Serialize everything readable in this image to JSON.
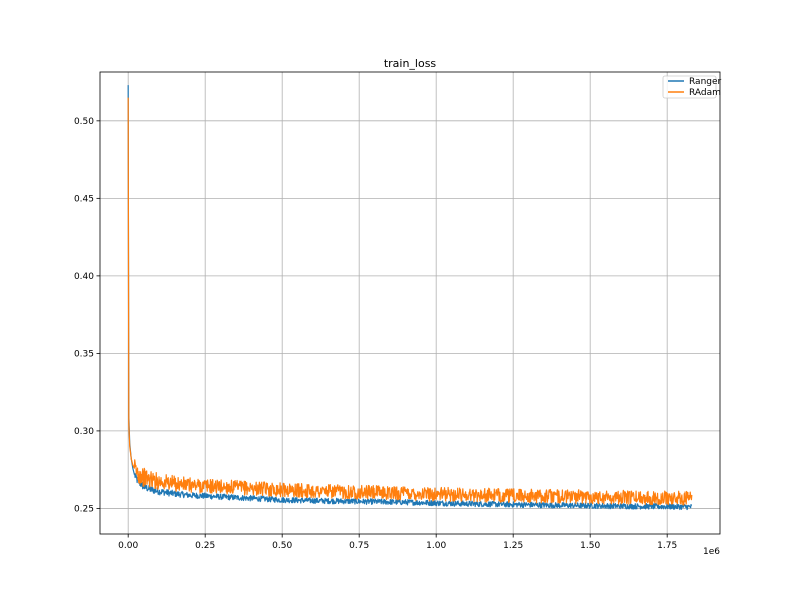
{
  "chart_data": {
    "type": "line",
    "title": "train_loss",
    "xlabel": "",
    "ylabel": "",
    "x_offset_label": "1e6",
    "xlim": [
      -0.0915,
      1.9215
    ],
    "ylim": [
      0.2335,
      0.5315
    ],
    "x_ticks": [
      {
        "value": 0.0,
        "label": "0.00"
      },
      {
        "value": 0.25,
        "label": "0.25"
      },
      {
        "value": 0.5,
        "label": "0.50"
      },
      {
        "value": 0.75,
        "label": "0.75"
      },
      {
        "value": 1.0,
        "label": "1.00"
      },
      {
        "value": 1.25,
        "label": "1.25"
      },
      {
        "value": 1.5,
        "label": "1.50"
      },
      {
        "value": 1.75,
        "label": "1.75"
      }
    ],
    "y_ticks": [
      {
        "value": 0.25,
        "label": "0.25"
      },
      {
        "value": 0.3,
        "label": "0.30"
      },
      {
        "value": 0.35,
        "label": "0.35"
      },
      {
        "value": 0.4,
        "label": "0.40"
      },
      {
        "value": 0.45,
        "label": "0.45"
      },
      {
        "value": 0.5,
        "label": "0.50"
      }
    ],
    "grid": true,
    "legend_position": "top-right",
    "series": [
      {
        "name": "Ranger",
        "color": "#1f77b4",
        "x": [
          0.0,
          0.002,
          0.005,
          0.01,
          0.015,
          0.02,
          0.03,
          0.05,
          0.075,
          0.1,
          0.15,
          0.2,
          0.25,
          0.3,
          0.4,
          0.5,
          0.6,
          0.75,
          0.9,
          1.0,
          1.1,
          1.25,
          1.4,
          1.5,
          1.6,
          1.75,
          1.83
        ],
        "y": [
          0.523,
          0.31,
          0.292,
          0.282,
          0.276,
          0.272,
          0.268,
          0.264,
          0.262,
          0.261,
          0.2595,
          0.2585,
          0.258,
          0.2575,
          0.2565,
          0.2555,
          0.255,
          0.2545,
          0.254,
          0.2535,
          0.253,
          0.2525,
          0.252,
          0.2518,
          0.2515,
          0.2512,
          0.251
        ],
        "noise": 0.0018
      },
      {
        "name": "RAdam",
        "color": "#ff7f0e",
        "x": [
          0.0,
          0.002,
          0.005,
          0.01,
          0.015,
          0.02,
          0.03,
          0.05,
          0.075,
          0.1,
          0.15,
          0.2,
          0.25,
          0.3,
          0.4,
          0.5,
          0.6,
          0.75,
          0.9,
          1.0,
          1.1,
          1.25,
          1.4,
          1.5,
          1.6,
          1.75,
          1.83
        ],
        "y": [
          0.515,
          0.305,
          0.29,
          0.282,
          0.278,
          0.276,
          0.273,
          0.27,
          0.2685,
          0.2675,
          0.266,
          0.265,
          0.2645,
          0.264,
          0.263,
          0.262,
          0.2612,
          0.2605,
          0.2598,
          0.2592,
          0.2588,
          0.2582,
          0.2578,
          0.2575,
          0.2572,
          0.2568,
          0.2565
        ],
        "noise": 0.0045
      }
    ]
  }
}
